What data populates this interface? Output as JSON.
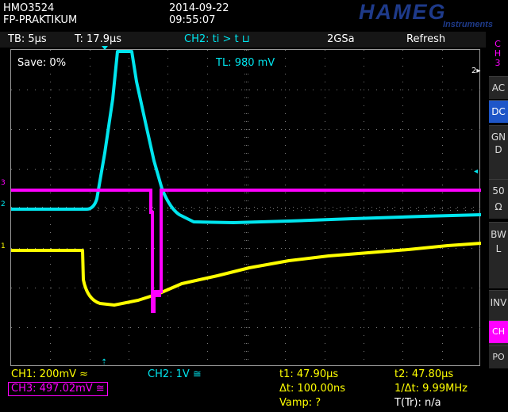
{
  "header": {
    "model": "HMO3524",
    "name": "FP-PRAKTIKUM",
    "date": "2014-09-22",
    "time": "09:55:07",
    "logo": "HAMEG",
    "logo_sub": "Instruments"
  },
  "status": {
    "timebase": "TB: 5µs",
    "trigger_time": "T: 17.9µs",
    "trigger_info": "CH2: ti > t ⊔",
    "sample_rate": "2GSa",
    "mode": "Refresh"
  },
  "screen": {
    "save_label": "Save: 0%",
    "trigger_level": "TL:  980 mV",
    "marker_ch1": "1",
    "marker_ch2": "2",
    "marker_ch3": "3",
    "marker_right": "2▸"
  },
  "side_panel": {
    "channel_label": "CH3",
    "coupling_ac": "AC",
    "coupling_dc": "DC",
    "gnd": "GND",
    "impedance": "50Ω",
    "bwl": "BWL",
    "inv": "INV",
    "ch": "CH",
    "po": "PO"
  },
  "bottom": {
    "ch1": "CH1: 200mV ≈",
    "ch2": "CH2: 1V ≅",
    "ch3": "CH3: 497.02mV ≅",
    "t1": "t1: 47.90µs",
    "t2": "t2: 47.80µs",
    "delta_t": "Δt: 100.00ns",
    "inv_delta_t": "1/Δt: 9.99MHz",
    "vamp": "Vamp: ?",
    "t_tr": "T(Tr): n/a"
  },
  "colors": {
    "ch1": "#ffff00",
    "ch2": "#00e5ee",
    "ch3": "#ff00ff",
    "logo": "#1e3a8a",
    "dc_active": "#1e56c8",
    "ch_active": "#ff00ff"
  }
}
